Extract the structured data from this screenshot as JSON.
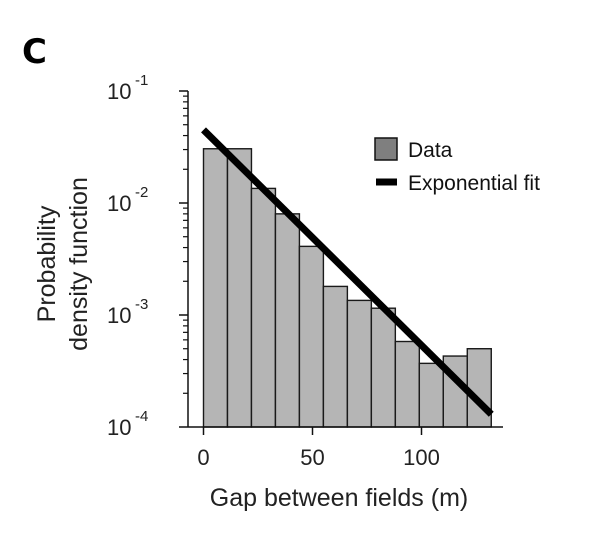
{
  "panel_label": "C",
  "chart_data": {
    "type": "bar",
    "xlabel": "Gap between fields (m)",
    "ylabel_lines": [
      "Probability",
      "density function"
    ],
    "xlim": [
      -6,
      137
    ],
    "ylim": [
      0.0001,
      0.1
    ],
    "yscale": "log",
    "x_ticks": [
      0,
      50,
      100
    ],
    "x_tick_labels": [
      "0",
      "50",
      "100"
    ],
    "y_ticks": [
      {
        "value": 0.1,
        "base": "10",
        "exp": "-1"
      },
      {
        "value": 0.01,
        "base": "10",
        "exp": "-2"
      },
      {
        "value": 0.001,
        "base": "10",
        "exp": "-3"
      },
      {
        "value": 0.0001,
        "base": "10",
        "exp": "-4"
      }
    ],
    "bin_edges": [
      0,
      11,
      22,
      33,
      44,
      55,
      66,
      77,
      88,
      99,
      110,
      121,
      132
    ],
    "values": [
      0.0305,
      0.0305,
      0.0135,
      0.008,
      0.0041,
      0.0018,
      0.00135,
      0.00115,
      0.00058,
      0.00037,
      0.00043,
      0.0005
    ],
    "fit_line": {
      "x": [
        0,
        132
      ],
      "y": [
        0.045,
        0.00013
      ]
    },
    "legend": {
      "position": "top-right",
      "items": [
        {
          "label": "Data",
          "kind": "box",
          "color": "#7f7f7f"
        },
        {
          "label": "Exponential fit",
          "kind": "line",
          "color": "#000000"
        }
      ]
    },
    "colors": {
      "bar_fill": "#b5b5b5",
      "bar_edge": "#1a1a1a",
      "fit": "#000000"
    }
  }
}
